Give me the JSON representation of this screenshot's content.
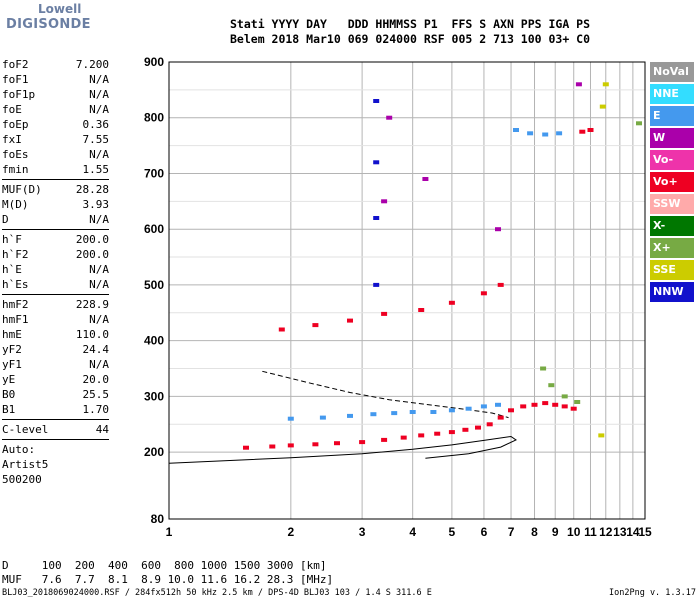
{
  "logo": {
    "line1": "Lowell",
    "line2": "DIGISONDE"
  },
  "header": {
    "labels": "Stati YYYY DAY   DDD HHMMSS P1  FFS S AXN PPS IGA PS",
    "values": "Belem 2018 Mar10 069 024000 RSF 005 2 713 100 03+ C0"
  },
  "params_group1": [
    {
      "label": "foF2",
      "value": "7.200"
    },
    {
      "label": "foF1",
      "value": "N/A"
    },
    {
      "label": "foF1p",
      "value": "N/A"
    },
    {
      "label": "foE",
      "value": "N/A"
    },
    {
      "label": "foEp",
      "value": "0.36"
    },
    {
      "label": "fxI",
      "value": "7.55"
    },
    {
      "label": "foEs",
      "value": "N/A"
    },
    {
      "label": "fmin",
      "value": "1.55"
    }
  ],
  "params_group2": [
    {
      "label": "MUF(D)",
      "value": "28.28"
    },
    {
      "label": "M(D)",
      "value": "3.93"
    },
    {
      "label": "D",
      "value": "N/A"
    }
  ],
  "params_group3": [
    {
      "label": "h`F",
      "value": "200.0"
    },
    {
      "label": "h`F2",
      "value": "200.0"
    },
    {
      "label": "h`E",
      "value": "N/A"
    },
    {
      "label": "h`Es",
      "value": "N/A"
    }
  ],
  "params_group4": [
    {
      "label": "hmF2",
      "value": "228.9"
    },
    {
      "label": "hmF1",
      "value": "N/A"
    },
    {
      "label": "hmE",
      "value": "110.0"
    },
    {
      "label": "yF2",
      "value": "24.4"
    },
    {
      "label": "yF1",
      "value": "N/A"
    },
    {
      "label": "yE",
      "value": "20.0"
    },
    {
      "label": "B0",
      "value": "25.5"
    },
    {
      "label": "B1",
      "value": "1.70"
    }
  ],
  "params_group5": [
    {
      "label": "C-level",
      "value": "44"
    }
  ],
  "auto_lines": [
    "Auto:",
    "Artist5",
    "500200"
  ],
  "legend": [
    {
      "label": "NoVal",
      "color": "#999999"
    },
    {
      "label": "NNE",
      "color": "#33ddff"
    },
    {
      "label": "E",
      "color": "#4499ee"
    },
    {
      "label": "W",
      "color": "#aa00aa"
    },
    {
      "label": "Vo-",
      "color": "#ee33aa"
    },
    {
      "label": "Vo+",
      "color": "#ee0022"
    },
    {
      "label": "SSW",
      "color": "#ffaaaa"
    },
    {
      "label": "X-",
      "color": "#007700"
    },
    {
      "label": "X+",
      "color": "#77aa44"
    },
    {
      "label": "SSE",
      "color": "#cccc00"
    },
    {
      "label": "NNW",
      "color": "#1111cc"
    }
  ],
  "footer": {
    "d_line": "D     100  200  400  600  800 1000 1500 3000 [km]",
    "muf_line": "MUF   7.6  7.7  8.1  8.9 10.0 11.6 16.2 28.3 [MHz]"
  },
  "bottom": {
    "left": "BLJ03_2018069024000.RSF / 284fx512h 50 kHz 2.5 km / DPS-4D BLJ03 103 / 1.4 S 311.6 E",
    "right": "Ion2Png v. 1.3.17"
  },
  "chart_data": {
    "type": "scatter",
    "title": "",
    "xlabel": "",
    "ylabel": "",
    "xlim": [
      1,
      15
    ],
    "ylim": [
      80,
      900
    ],
    "x_scale": "log",
    "x_ticks": [
      1,
      2,
      3,
      4,
      5,
      6,
      7,
      8,
      9,
      10,
      11,
      12,
      13,
      14,
      15
    ],
    "y_ticks": [
      80,
      200,
      300,
      400,
      500,
      600,
      700,
      800,
      900
    ],
    "grid": true,
    "legend_position": "right",
    "series": [
      {
        "name": "Vo+",
        "points": [
          [
            1.55,
            208
          ],
          [
            1.8,
            210
          ],
          [
            2.0,
            212
          ],
          [
            2.3,
            214
          ],
          [
            2.6,
            216
          ],
          [
            3.0,
            218
          ],
          [
            3.4,
            222
          ],
          [
            3.8,
            226
          ],
          [
            4.2,
            230
          ],
          [
            4.6,
            233
          ],
          [
            5.0,
            236
          ],
          [
            5.4,
            240
          ],
          [
            5.8,
            244
          ],
          [
            6.2,
            250
          ],
          [
            6.6,
            262
          ],
          [
            7.0,
            275
          ],
          [
            7.5,
            282
          ],
          [
            8.0,
            285
          ],
          [
            8.5,
            288
          ],
          [
            9.0,
            285
          ],
          [
            9.5,
            282
          ],
          [
            10.0,
            278
          ],
          [
            10.5,
            775
          ],
          [
            11.0,
            778
          ],
          [
            1.9,
            420
          ],
          [
            2.3,
            428
          ],
          [
            2.8,
            436
          ],
          [
            3.4,
            448
          ],
          [
            4.2,
            455
          ],
          [
            5.0,
            468
          ],
          [
            6.0,
            485
          ],
          [
            6.6,
            500
          ]
        ]
      },
      {
        "name": "E",
        "points": [
          [
            2.0,
            260
          ],
          [
            2.4,
            262
          ],
          [
            2.8,
            265
          ],
          [
            3.2,
            268
          ],
          [
            3.6,
            270
          ],
          [
            4.0,
            272
          ],
          [
            4.5,
            272
          ],
          [
            5.0,
            275
          ],
          [
            5.5,
            278
          ],
          [
            6.0,
            282
          ],
          [
            6.5,
            285
          ],
          [
            7.2,
            778
          ],
          [
            7.8,
            772
          ],
          [
            8.5,
            770
          ],
          [
            9.2,
            772
          ]
        ]
      },
      {
        "name": "W",
        "points": [
          [
            3.5,
            800
          ],
          [
            4.3,
            690
          ],
          [
            6.5,
            600
          ],
          [
            10.3,
            860
          ],
          [
            3.4,
            650
          ]
        ]
      },
      {
        "name": "NNW",
        "points": [
          [
            3.25,
            500
          ],
          [
            3.25,
            620
          ],
          [
            3.25,
            720
          ],
          [
            3.25,
            830
          ]
        ]
      },
      {
        "name": "X+",
        "points": [
          [
            8.4,
            350
          ],
          [
            8.8,
            320
          ],
          [
            9.5,
            300
          ],
          [
            10.2,
            290
          ],
          [
            14.5,
            790
          ]
        ]
      },
      {
        "name": "SSE",
        "points": [
          [
            11.8,
            820
          ],
          [
            12.0,
            860
          ],
          [
            11.7,
            230
          ]
        ]
      }
    ],
    "curves": [
      {
        "name": "model profile",
        "style": "solid",
        "points": [
          [
            1.0,
            180
          ],
          [
            2.0,
            190
          ],
          [
            3.0,
            197
          ],
          [
            4.0,
            205
          ],
          [
            5.0,
            213
          ],
          [
            6.0,
            221
          ],
          [
            7.0,
            228
          ],
          [
            7.2,
            222
          ],
          [
            6.6,
            209
          ],
          [
            5.5,
            197
          ],
          [
            4.3,
            189
          ]
        ]
      },
      {
        "name": "model profile",
        "style": "dashed",
        "points": [
          [
            1.7,
            345
          ],
          [
            2.2,
            325
          ],
          [
            2.8,
            307
          ],
          [
            3.5,
            294
          ],
          [
            4.5,
            284
          ],
          [
            5.5,
            276
          ],
          [
            6.3,
            270
          ],
          [
            6.9,
            262
          ]
        ]
      }
    ]
  }
}
